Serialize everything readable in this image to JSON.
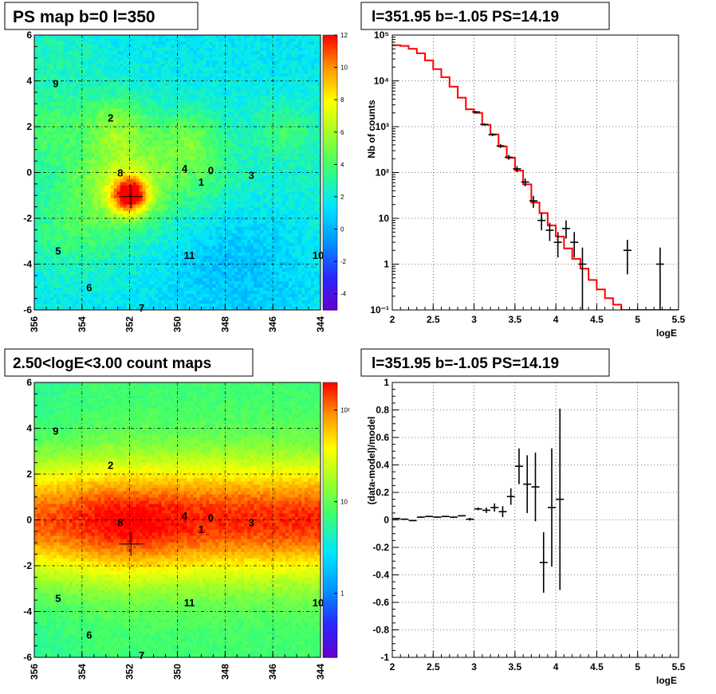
{
  "panels": {
    "map1_title": "PS map b=0 l=350",
    "map2_title": "2.50<logE<3.00 count maps",
    "spec_title": "l=351.95 b=-1.05 PS=14.19",
    "resid_title": "l=351.95 b=-1.05 PS=14.19"
  },
  "chart_data": [
    {
      "type": "heatmap",
      "title": "PS map b=0 l=350",
      "x_ticks": [
        "356",
        "354",
        "352",
        "350",
        "348",
        "346",
        "344"
      ],
      "y_ticks": [
        "6",
        "4",
        "2",
        "0",
        "-2",
        "-4",
        "-6"
      ],
      "xlim": [
        356,
        344
      ],
      "ylim": [
        -6,
        6
      ],
      "colorbar_ticks": [
        "12",
        "10",
        "8",
        "6",
        "4",
        "2",
        "0",
        "-2",
        "-4"
      ],
      "colorbar_range": [
        -5,
        12
      ],
      "grid": true,
      "marker": {
        "l": 351.95,
        "b": -1.05
      },
      "sources": [
        {
          "label": "9",
          "l": 355.1,
          "b": 3.9
        },
        {
          "label": "2",
          "l": 352.8,
          "b": 2.4
        },
        {
          "label": "8",
          "l": 352.4,
          "b": 0.0
        },
        {
          "label": "4",
          "l": 349.7,
          "b": 0.2
        },
        {
          "label": "0",
          "l": 348.6,
          "b": 0.1
        },
        {
          "label": "1",
          "l": 349.0,
          "b": -0.4
        },
        {
          "label": "3",
          "l": 346.9,
          "b": -0.1
        },
        {
          "label": "5",
          "l": 355.0,
          "b": -3.4
        },
        {
          "label": "11",
          "l": 349.5,
          "b": -3.6
        },
        {
          "label": "10",
          "l": 344.1,
          "b": -3.6
        },
        {
          "label": "6",
          "l": 353.7,
          "b": -5.0
        },
        {
          "label": "7",
          "l": 351.5,
          "b": -5.9
        }
      ]
    },
    {
      "type": "heatmap",
      "title": "2.50<logE<3.00 count maps",
      "x_ticks": [
        "356",
        "354",
        "352",
        "350",
        "348",
        "346",
        "344"
      ],
      "y_ticks": [
        "6",
        "4",
        "2",
        "0",
        "-2",
        "-4",
        "-6"
      ],
      "xlim": [
        356,
        344
      ],
      "ylim": [
        -6,
        6
      ],
      "colorbar_ticks": [
        "10²",
        "10",
        "1"
      ],
      "colorbar_scale": "log",
      "colorbar_range": [
        0.2,
        200
      ],
      "grid": true,
      "marker": {
        "l": 351.95,
        "b": -1.05
      },
      "sources": [
        {
          "label": "9",
          "l": 355.1,
          "b": 3.9
        },
        {
          "label": "2",
          "l": 352.8,
          "b": 2.4
        },
        {
          "label": "8",
          "l": 352.4,
          "b": -0.1
        },
        {
          "label": "4",
          "l": 349.7,
          "b": 0.2
        },
        {
          "label": "0",
          "l": 348.6,
          "b": 0.1
        },
        {
          "label": "1",
          "l": 349.0,
          "b": -0.4
        },
        {
          "label": "3",
          "l": 346.9,
          "b": -0.1
        },
        {
          "label": "5",
          "l": 355.0,
          "b": -3.4
        },
        {
          "label": "11",
          "l": 349.5,
          "b": -3.6
        },
        {
          "label": "10",
          "l": 344.1,
          "b": -3.6
        },
        {
          "label": "6",
          "l": 353.7,
          "b": -5.0
        },
        {
          "label": "7",
          "l": 351.5,
          "b": -5.9
        }
      ]
    },
    {
      "type": "scatter",
      "title": "l=351.95 b=-1.05 PS=14.19",
      "xlabel": "logE",
      "ylabel": "Nb of counts",
      "xlim": [
        2,
        5.5
      ],
      "ylim": [
        0.1,
        100000
      ],
      "y_scale": "log",
      "grid": true,
      "x_ticks": [
        "2",
        "2.5",
        "3",
        "3.5",
        "4",
        "4.5",
        "5",
        "5.5"
      ],
      "y_ticks": [
        {
          "v": 0.1,
          "label": "10⁻¹"
        },
        {
          "v": 1,
          "label": "1"
        },
        {
          "v": 10,
          "label": "10"
        },
        {
          "v": 100,
          "label": "10²"
        },
        {
          "v": 1000,
          "label": "10³"
        },
        {
          "v": 10000,
          "label": "10⁴"
        },
        {
          "v": 100000,
          "label": "10⁵"
        }
      ],
      "data_points": [
        {
          "x": 3.025,
          "y": 2100,
          "lo": 2010,
          "hi": 2190
        },
        {
          "x": 3.125,
          "y": 1120,
          "lo": 1055,
          "hi": 1185
        },
        {
          "x": 3.225,
          "y": 670,
          "lo": 620,
          "hi": 720
        },
        {
          "x": 3.325,
          "y": 380,
          "lo": 345,
          "hi": 415
        },
        {
          "x": 3.425,
          "y": 215,
          "lo": 190,
          "hi": 240
        },
        {
          "x": 3.525,
          "y": 120,
          "lo": 102,
          "hi": 138
        },
        {
          "x": 3.625,
          "y": 62,
          "lo": 50,
          "hi": 74
        },
        {
          "x": 3.725,
          "y": 24,
          "lo": 17,
          "hi": 31
        },
        {
          "x": 3.825,
          "y": 9,
          "lo": 5.5,
          "hi": 13
        },
        {
          "x": 3.925,
          "y": 5.5,
          "lo": 3.2,
          "hi": 8
        },
        {
          "x": 4.025,
          "y": 3,
          "lo": 1.4,
          "hi": 5
        },
        {
          "x": 4.125,
          "y": 6,
          "lo": 3.6,
          "hi": 9
        },
        {
          "x": 4.225,
          "y": 3,
          "lo": 1.4,
          "hi": 5
        },
        {
          "x": 4.325,
          "y": 1,
          "lo": 0.1,
          "hi": 2.3
        },
        {
          "x": 4.875,
          "y": 2,
          "lo": 0.6,
          "hi": 3.4
        },
        {
          "x": 5.275,
          "y": 1,
          "lo": 0.1,
          "hi": 2.3
        }
      ],
      "model": [
        {
          "x": 2.0,
          "y": 60000
        },
        {
          "x": 2.1,
          "y": 58000
        },
        {
          "x": 2.2,
          "y": 50000
        },
        {
          "x": 2.3,
          "y": 40000
        },
        {
          "x": 2.4,
          "y": 28000
        },
        {
          "x": 2.5,
          "y": 18000
        },
        {
          "x": 2.6,
          "y": 12000
        },
        {
          "x": 2.7,
          "y": 7500
        },
        {
          "x": 2.8,
          "y": 4300
        },
        {
          "x": 2.9,
          "y": 2400
        },
        {
          "x": 3.0,
          "y": 2000
        },
        {
          "x": 3.1,
          "y": 1100
        },
        {
          "x": 3.2,
          "y": 680
        },
        {
          "x": 3.3,
          "y": 370
        },
        {
          "x": 3.4,
          "y": 210
        },
        {
          "x": 3.5,
          "y": 110
        },
        {
          "x": 3.6,
          "y": 55
        },
        {
          "x": 3.7,
          "y": 22
        },
        {
          "x": 3.8,
          "y": 13
        },
        {
          "x": 3.9,
          "y": 7
        },
        {
          "x": 4.0,
          "y": 4
        },
        {
          "x": 4.1,
          "y": 2.2
        },
        {
          "x": 4.2,
          "y": 1.3
        },
        {
          "x": 4.3,
          "y": 0.8
        },
        {
          "x": 4.4,
          "y": 0.45
        },
        {
          "x": 4.5,
          "y": 0.28
        },
        {
          "x": 4.6,
          "y": 0.18
        },
        {
          "x": 4.7,
          "y": 0.13
        },
        {
          "x": 4.8,
          "y": 0.1
        },
        {
          "x": 5.5,
          "y": 0.1
        }
      ],
      "model_color": "#ff0000"
    },
    {
      "type": "scatter",
      "title": "l=351.95 b=-1.05 PS=14.19",
      "xlabel": "logE",
      "ylabel": "(data-model)/model",
      "xlim": [
        2,
        5.5
      ],
      "ylim": [
        -1,
        1
      ],
      "grid": true,
      "x_ticks": [
        "2",
        "2.5",
        "3",
        "3.5",
        "4",
        "4.5",
        "5",
        "5.5"
      ],
      "y_ticks": [
        "1",
        "0.8",
        "0.6",
        "0.4",
        "0.2",
        "0",
        "-0.2",
        "-0.4",
        "-0.6",
        "-0.8",
        "-1"
      ],
      "points": [
        {
          "x": 2.05,
          "y": 0.01,
          "lo": 0.005,
          "hi": 0.015
        },
        {
          "x": 2.15,
          "y": 0.005,
          "lo": 0.0,
          "hi": 0.01
        },
        {
          "x": 2.25,
          "y": -0.005,
          "lo": -0.01,
          "hi": 0.0
        },
        {
          "x": 2.35,
          "y": 0.02,
          "lo": 0.015,
          "hi": 0.025
        },
        {
          "x": 2.45,
          "y": 0.025,
          "lo": 0.02,
          "hi": 0.03
        },
        {
          "x": 2.55,
          "y": 0.02,
          "lo": 0.015,
          "hi": 0.025
        },
        {
          "x": 2.65,
          "y": 0.025,
          "lo": 0.02,
          "hi": 0.03
        },
        {
          "x": 2.75,
          "y": 0.02,
          "lo": 0.015,
          "hi": 0.025
        },
        {
          "x": 2.85,
          "y": 0.03,
          "lo": 0.025,
          "hi": 0.035
        },
        {
          "x": 2.95,
          "y": 0.005,
          "lo": -0.005,
          "hi": 0.015
        },
        {
          "x": 3.05,
          "y": 0.08,
          "lo": 0.07,
          "hi": 0.09
        },
        {
          "x": 3.15,
          "y": 0.07,
          "lo": 0.05,
          "hi": 0.09
        },
        {
          "x": 3.25,
          "y": 0.09,
          "lo": 0.06,
          "hi": 0.12
        },
        {
          "x": 3.35,
          "y": 0.06,
          "lo": 0.02,
          "hi": 0.1
        },
        {
          "x": 3.45,
          "y": 0.17,
          "lo": 0.11,
          "hi": 0.23
        },
        {
          "x": 3.55,
          "y": 0.39,
          "lo": 0.26,
          "hi": 0.52
        },
        {
          "x": 3.65,
          "y": 0.26,
          "lo": 0.05,
          "hi": 0.47
        },
        {
          "x": 3.75,
          "y": 0.24,
          "lo": -0.01,
          "hi": 0.49
        },
        {
          "x": 3.85,
          "y": -0.31,
          "lo": -0.53,
          "hi": -0.09
        },
        {
          "x": 3.95,
          "y": 0.09,
          "lo": -0.34,
          "hi": 0.52
        },
        {
          "x": 4.05,
          "y": 0.15,
          "lo": -0.51,
          "hi": 0.81
        }
      ]
    }
  ]
}
